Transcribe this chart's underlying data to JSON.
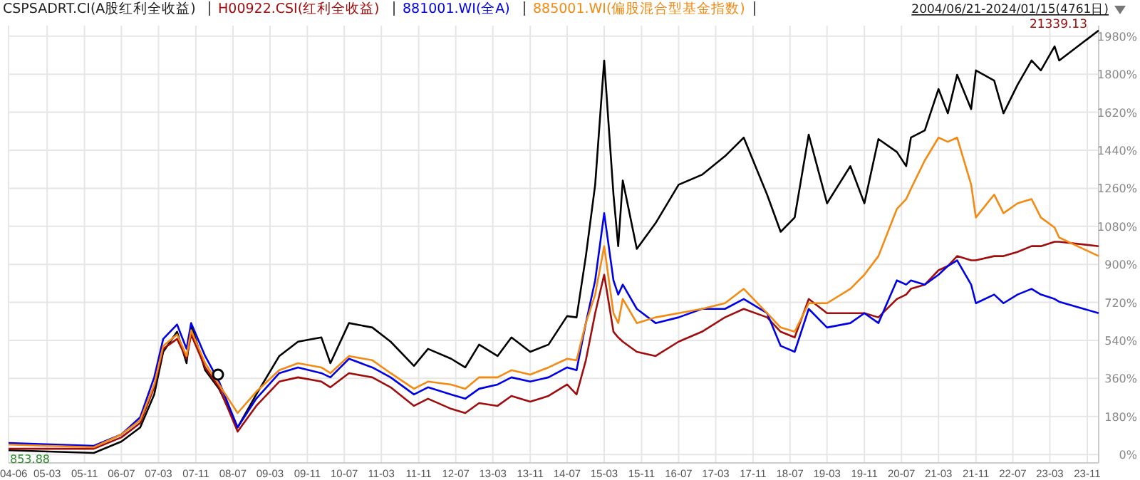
{
  "chart_data": {
    "type": "line",
    "grid": true,
    "marker": "none",
    "line_style": "solid",
    "x": [
      "2004-06-21",
      "2006-01",
      "2006-07",
      "2006-11",
      "2007-02",
      "2007-04",
      "2007-07",
      "2007-09",
      "2007-10",
      "2008-01",
      "2008-04",
      "2008-08",
      "2008-12",
      "2009-05",
      "2009-09",
      "2010-02",
      "2010-04",
      "2010-08",
      "2011-01",
      "2011-05",
      "2011-10",
      "2012-01",
      "2012-06",
      "2012-09",
      "2012-12",
      "2013-04",
      "2013-07",
      "2013-11",
      "2014-03",
      "2014-07",
      "2014-09",
      "2014-11",
      "2015-01",
      "2015-03",
      "2015-05",
      "2015-06",
      "2015-07",
      "2015-10",
      "2016-02",
      "2016-07",
      "2016-12",
      "2017-05",
      "2017-09",
      "2018-02",
      "2018-05",
      "2018-08",
      "2018-11",
      "2019-03",
      "2019-08",
      "2019-11",
      "2020-02",
      "2020-06",
      "2020-08",
      "2020-09",
      "2020-12",
      "2021-03",
      "2021-05",
      "2021-07",
      "2021-10",
      "2021-11",
      "2022-03",
      "2022-05",
      "2022-08",
      "2022-11",
      "2023-01",
      "2023-04",
      "2023-05",
      "2024-01-15"
    ],
    "series": [
      {
        "name": "CSPSADRT.CI(A股红利全收益)",
        "color": "#000000",
        "values": [
          20,
          7,
          61,
          128,
          284,
          486,
          581,
          432,
          615,
          399,
          311,
          128,
          284,
          466,
          534,
          554,
          432,
          622,
          601,
          534,
          419,
          500,
          453,
          412,
          520,
          466,
          554,
          486,
          520,
          655,
          649,
          939,
          1277,
          1865,
          1230,
          986,
          1297,
          973,
          1095,
          1277,
          1324,
          1412,
          1500,
          1230,
          1054,
          1122,
          1514,
          1189,
          1365,
          1189,
          1493,
          1432,
          1365,
          1500,
          1534,
          1730,
          1615,
          1797,
          1635,
          1818,
          1770,
          1615,
          1750,
          1865,
          1818,
          1932,
          1865,
          2007
        ]
      },
      {
        "name": "H00922.CSI(红利全收益)",
        "color": "#a00d0d",
        "values": [
          27,
          27,
          81,
          149,
          318,
          500,
          547,
          453,
          568,
          412,
          318,
          108,
          230,
          345,
          365,
          345,
          318,
          385,
          365,
          318,
          230,
          264,
          216,
          196,
          243,
          230,
          277,
          250,
          277,
          331,
          284,
          446,
          669,
          851,
          581,
          554,
          534,
          486,
          466,
          534,
          581,
          649,
          689,
          649,
          581,
          554,
          736,
          669,
          669,
          669,
          649,
          736,
          757,
          784,
          804,
          872,
          892,
          939,
          919,
          919,
          939,
          939,
          959,
          986,
          986,
          1007,
          1007,
          986
        ]
      },
      {
        "name": "881001.WI(全A)",
        "color": "#0000e6",
        "values": [
          54,
          41,
          95,
          176,
          365,
          547,
          615,
          500,
          622,
          466,
          345,
          128,
          264,
          385,
          412,
          385,
          365,
          453,
          412,
          365,
          284,
          318,
          284,
          264,
          311,
          331,
          365,
          345,
          365,
          412,
          399,
          622,
          824,
          1142,
          824,
          757,
          804,
          689,
          622,
          649,
          689,
          689,
          736,
          669,
          514,
          486,
          689,
          601,
          622,
          669,
          622,
          824,
          804,
          824,
          804,
          851,
          892,
          919,
          804,
          716,
          757,
          716,
          757,
          784,
          757,
          736,
          723,
          669
        ]
      },
      {
        "name": "885001.WI(偏股混合型基金指数)",
        "color": "#f28a14",
        "values": [
          47,
          34,
          95,
          162,
          331,
          514,
          568,
          466,
          588,
          432,
          331,
          196,
          297,
          399,
          432,
          412,
          385,
          466,
          446,
          385,
          311,
          345,
          331,
          311,
          365,
          365,
          399,
          378,
          412,
          453,
          446,
          622,
          757,
          986,
          669,
          622,
          736,
          622,
          649,
          669,
          689,
          716,
          784,
          669,
          601,
          581,
          716,
          716,
          784,
          851,
          939,
          1162,
          1209,
          1257,
          1392,
          1500,
          1480,
          1500,
          1277,
          1122,
          1230,
          1142,
          1189,
          1209,
          1122,
          1074,
          1027,
          939
        ]
      }
    ],
    "xlim": [
      "2004-06-21",
      "2024-01-15"
    ],
    "xticks": [
      {
        "value": "2004-06-21",
        "label": "04-06"
      },
      {
        "value": "2005-03",
        "label": "05-03"
      },
      {
        "value": "2005-11",
        "label": "05-11"
      },
      {
        "value": "2006-07",
        "label": "06-07"
      },
      {
        "value": "2007-03",
        "label": "07-03"
      },
      {
        "value": "2007-11",
        "label": "07-11"
      },
      {
        "value": "2008-07",
        "label": "08-07"
      },
      {
        "value": "2009-03",
        "label": "09-03"
      },
      {
        "value": "2009-11",
        "label": "09-11"
      },
      {
        "value": "2010-07",
        "label": "10-07"
      },
      {
        "value": "2011-03",
        "label": "11-03"
      },
      {
        "value": "2011-11",
        "label": "11-11"
      },
      {
        "value": "2012-07",
        "label": "12-07"
      },
      {
        "value": "2013-03",
        "label": "13-03"
      },
      {
        "value": "2013-11",
        "label": "13-11"
      },
      {
        "value": "2014-07",
        "label": "14-07"
      },
      {
        "value": "2015-03",
        "label": "15-03"
      },
      {
        "value": "2015-11",
        "label": "15-11"
      },
      {
        "value": "2016-07",
        "label": "16-07"
      },
      {
        "value": "2017-03",
        "label": "17-03"
      },
      {
        "value": "2017-11",
        "label": "17-11"
      },
      {
        "value": "2018-07",
        "label": "18-07"
      },
      {
        "value": "2019-03",
        "label": "19-03"
      },
      {
        "value": "2019-11",
        "label": "19-11"
      },
      {
        "value": "2020-07",
        "label": "20-07"
      },
      {
        "value": "2021-03",
        "label": "21-03"
      },
      {
        "value": "2021-11",
        "label": "21-11"
      },
      {
        "value": "2022-07",
        "label": "22-07"
      },
      {
        "value": "2023-03",
        "label": "23-03"
      },
      {
        "value": "2023-11",
        "label": "23-11"
      }
    ],
    "ylim": [
      -40,
      2030
    ],
    "yticks": [
      {
        "value": 0,
        "label": "0%"
      },
      {
        "value": 180,
        "label": "180%"
      },
      {
        "value": 360,
        "label": "360%"
      },
      {
        "value": 540,
        "label": "540%"
      },
      {
        "value": 720,
        "label": "720%"
      },
      {
        "value": 900,
        "label": "900%"
      },
      {
        "value": 1080,
        "label": "1080%"
      },
      {
        "value": 1260,
        "label": "1260%"
      },
      {
        "value": 1440,
        "label": "1440%"
      },
      {
        "value": 1620,
        "label": "1620%"
      },
      {
        "value": 1800,
        "label": "1800%"
      },
      {
        "value": 1980,
        "label": "1980%"
      }
    ],
    "annotations": [
      "2004/06/21-2024/01/15(4761日)",
      {
        "text": "21339.13",
        "x": "2024-01-15",
        "y": 2007
      },
      {
        "text": "853.88",
        "x": "2004-06-21",
        "y": 20
      }
    ]
  }
}
